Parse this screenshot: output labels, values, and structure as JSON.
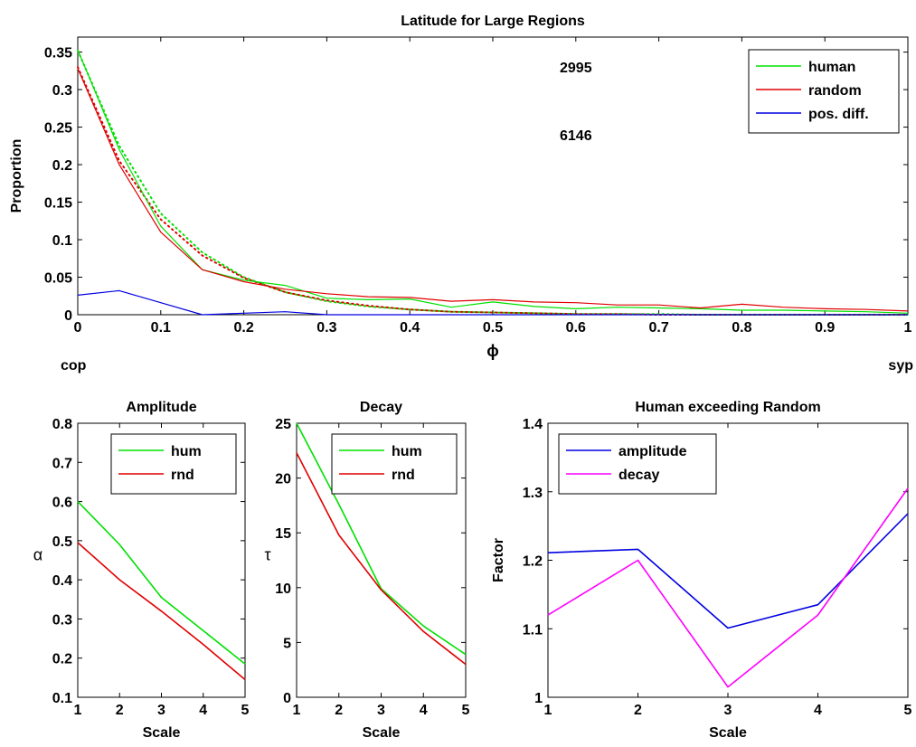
{
  "chart_data": [
    {
      "type": "line",
      "title": "Latitude for Large Regions",
      "xlabel": "ϕ",
      "ylabel": "Proportion",
      "xlim": [
        0,
        1
      ],
      "ylim": [
        0,
        0.37
      ],
      "xticks": [
        "0",
        "0.1",
        "0.2",
        "0.3",
        "0.4",
        "0.5",
        "0.6",
        "0.7",
        "0.8",
        "0.9",
        "1"
      ],
      "xtick_values": [
        0,
        0.1,
        0.2,
        0.3,
        0.4,
        0.5,
        0.6,
        0.7,
        0.8,
        0.9,
        1
      ],
      "yticks": [
        "0",
        "0.05",
        "0.1",
        "0.15",
        "0.2",
        "0.25",
        "0.3",
        "0.35"
      ],
      "ytick_values": [
        0,
        0.05,
        0.1,
        0.15,
        0.2,
        0.25,
        0.3,
        0.35
      ],
      "end_labels": {
        "left": "cop",
        "right": "syp"
      },
      "annotations": [
        {
          "text": "2995",
          "x": 0.6,
          "y": 0.33
        },
        {
          "text": "6146",
          "x": 0.6,
          "y": 0.24
        }
      ],
      "legend_position": "top-right",
      "grid": false,
      "x": [
        0,
        0.05,
        0.1,
        0.15,
        0.2,
        0.25,
        0.3,
        0.35,
        0.4,
        0.45,
        0.5,
        0.55,
        0.6,
        0.65,
        0.7,
        0.75,
        0.8,
        0.85,
        0.9,
        0.95,
        1
      ],
      "series": [
        {
          "name": "human",
          "color": "#00e000",
          "style": "solid",
          "values": [
            0.353,
            0.22,
            0.118,
            0.06,
            0.046,
            0.039,
            0.022,
            0.02,
            0.021,
            0.01,
            0.017,
            0.011,
            0.008,
            0.01,
            0.009,
            0.008,
            0.006,
            0.006,
            0.005,
            0.004,
            0.002
          ]
        },
        {
          "name": "random",
          "color": "#e00000",
          "style": "solid",
          "values": [
            0.328,
            0.2,
            0.11,
            0.06,
            0.044,
            0.034,
            0.028,
            0.024,
            0.023,
            0.018,
            0.02,
            0.017,
            0.016,
            0.013,
            0.013,
            0.009,
            0.014,
            0.01,
            0.008,
            0.007,
            0.005
          ]
        },
        {
          "name": "pos. diff.",
          "color": "#0000e0",
          "style": "solid",
          "values": [
            0.026,
            0.032,
            0.016,
            0.0,
            0.002,
            0.004,
            0.0,
            0.0,
            0.0,
            0.0,
            0.0,
            0.0,
            0.0,
            0.0,
            0.0,
            0.0,
            0.0,
            0.0,
            0.0,
            0.0,
            0.0
          ]
        },
        {
          "color": "#00e000",
          "style": "dotted",
          "values": [
            0.352,
            0.225,
            0.135,
            0.083,
            0.05,
            0.03,
            0.018,
            0.011,
            0.007,
            0.004,
            0.003,
            0.002,
            0.001,
            0.001,
            0.001,
            0.0,
            0.0,
            0.0,
            0.0,
            0.0,
            0.0
          ]
        },
        {
          "color": "#e00000",
          "style": "dotted",
          "values": [
            0.33,
            0.205,
            0.127,
            0.079,
            0.049,
            0.03,
            0.019,
            0.012,
            0.007,
            0.004,
            0.003,
            0.002,
            0.001,
            0.001,
            0.0,
            0.0,
            0.0,
            0.0,
            0.0,
            0.0,
            0.0
          ]
        }
      ]
    },
    {
      "type": "line",
      "title": "Amplitude",
      "xlabel": "Scale",
      "ylabel": "α",
      "xlim": [
        1,
        5
      ],
      "ylim": [
        0.1,
        0.8
      ],
      "xticks": [
        "1",
        "2",
        "3",
        "4",
        "5"
      ],
      "xtick_values": [
        1,
        2,
        3,
        4,
        5
      ],
      "yticks": [
        "0.1",
        "0.2",
        "0.3",
        "0.4",
        "0.5",
        "0.6",
        "0.7",
        "0.8"
      ],
      "ytick_values": [
        0.1,
        0.2,
        0.3,
        0.4,
        0.5,
        0.6,
        0.7,
        0.8
      ],
      "legend_position": "top-right",
      "grid": false,
      "x": [
        1,
        2,
        3,
        4,
        5
      ],
      "series": [
        {
          "name": "hum",
          "color": "#00e000",
          "values": [
            0.6,
            0.49,
            0.355,
            0.27,
            0.185
          ]
        },
        {
          "name": "rnd",
          "color": "#e00000",
          "values": [
            0.495,
            0.4,
            0.32,
            0.235,
            0.145
          ]
        }
      ]
    },
    {
      "type": "line",
      "title": "Decay",
      "xlabel": "Scale",
      "ylabel": "τ",
      "xlim": [
        1,
        5
      ],
      "ylim": [
        0,
        25
      ],
      "xticks": [
        "1",
        "2",
        "3",
        "4",
        "5"
      ],
      "xtick_values": [
        1,
        2,
        3,
        4,
        5
      ],
      "yticks": [
        "0",
        "5",
        "10",
        "15",
        "20",
        "25"
      ],
      "ytick_values": [
        0,
        5,
        10,
        15,
        20,
        25
      ],
      "legend_position": "top-right",
      "grid": false,
      "x": [
        1,
        2,
        3,
        4,
        5
      ],
      "series": [
        {
          "name": "hum",
          "color": "#00e000",
          "values": [
            25,
            17.6,
            9.9,
            6.5,
            3.9
          ]
        },
        {
          "name": "rnd",
          "color": "#e00000",
          "values": [
            22.3,
            14.8,
            9.8,
            6.0,
            3.0
          ]
        }
      ]
    },
    {
      "type": "line",
      "title": "Human exceeding Random",
      "xlabel": "Scale",
      "ylabel": "Factor",
      "xlim": [
        1,
        5
      ],
      "ylim": [
        1,
        1.4
      ],
      "xticks": [
        "1",
        "2",
        "3",
        "4",
        "5"
      ],
      "xtick_values": [
        1,
        2,
        3,
        4,
        5
      ],
      "yticks": [
        "1",
        "1.1",
        "1.2",
        "1.3",
        "1.4"
      ],
      "ytick_values": [
        1,
        1.1,
        1.2,
        1.3,
        1.4
      ],
      "legend_position": "top-left",
      "grid": false,
      "x": [
        1,
        2,
        3,
        4,
        5
      ],
      "series": [
        {
          "name": "amplitude",
          "color": "#0000e0",
          "values": [
            1.211,
            1.216,
            1.101,
            1.135,
            1.268
          ]
        },
        {
          "name": "decay",
          "color": "#ff00ff",
          "values": [
            1.12,
            1.2,
            1.015,
            1.12,
            1.305
          ]
        }
      ]
    }
  ]
}
